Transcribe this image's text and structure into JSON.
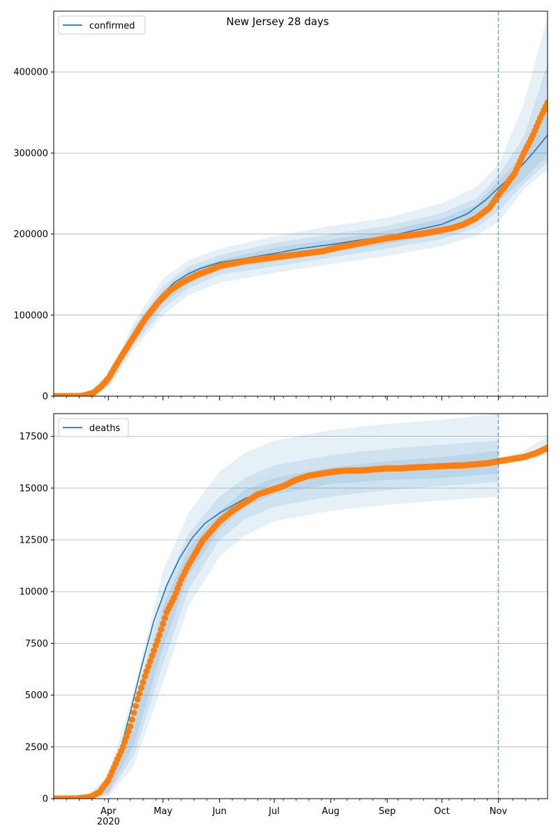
{
  "chart_data": [
    {
      "type": "line",
      "title": "New Jersey 28 days",
      "legend": {
        "label": "confirmed",
        "placement": "top-left"
      },
      "xlabel": "",
      "ylabel": "",
      "xlim": [
        "2020-03-02",
        "2020-11-28"
      ],
      "ylim": [
        0,
        475000
      ],
      "yticks": [
        0,
        100000,
        200000,
        300000,
        400000
      ],
      "ytick_labels": [
        "0",
        "100000",
        "200000",
        "300000",
        "400000"
      ],
      "grid": "horizontal",
      "forecast_start": "2020-11-01",
      "series": [
        {
          "name": "confirmed",
          "kind": "model",
          "x": [
            "2020-03-02",
            "2020-03-18",
            "2020-03-24",
            "2020-03-31",
            "2020-04-07",
            "2020-04-15",
            "2020-04-22",
            "2020-04-29",
            "2020-05-07",
            "2020-05-15",
            "2020-05-22",
            "2020-06-01",
            "2020-06-15",
            "2020-07-01",
            "2020-07-15",
            "2020-08-01",
            "2020-08-15",
            "2020-09-01",
            "2020-09-15",
            "2020-10-01",
            "2020-10-15",
            "2020-10-25",
            "2020-11-01",
            "2020-11-10",
            "2020-11-20",
            "2020-11-28"
          ],
          "y": [
            0,
            0,
            2000,
            15000,
            45000,
            72000,
            100000,
            122000,
            140000,
            151000,
            158000,
            165000,
            170000,
            176000,
            182000,
            187000,
            192000,
            197000,
            204000,
            212000,
            225000,
            242000,
            257000,
            275000,
            300000,
            322000
          ]
        },
        {
          "name": "confirmed",
          "kind": "observed",
          "x": [
            "2020-03-02",
            "2020-03-10",
            "2020-03-17",
            "2020-03-20",
            "2020-03-24",
            "2020-03-28",
            "2020-04-01",
            "2020-04-07",
            "2020-04-14",
            "2020-04-21",
            "2020-04-28",
            "2020-05-05",
            "2020-05-12",
            "2020-05-19",
            "2020-05-26",
            "2020-06-02",
            "2020-06-09",
            "2020-06-16",
            "2020-06-23",
            "2020-06-30",
            "2020-07-07",
            "2020-07-14",
            "2020-07-21",
            "2020-07-28",
            "2020-08-04",
            "2020-08-11",
            "2020-08-18",
            "2020-08-25",
            "2020-09-01",
            "2020-09-08",
            "2020-09-15",
            "2020-09-22",
            "2020-09-29",
            "2020-10-06",
            "2020-10-13",
            "2020-10-20",
            "2020-10-27",
            "2020-11-01",
            "2020-11-05",
            "2020-11-10",
            "2020-11-15",
            "2020-11-20",
            "2020-11-24",
            "2020-11-28"
          ],
          "y": [
            0,
            0,
            300,
            1500,
            4500,
            12000,
            22000,
            45000,
            70000,
            95000,
            115000,
            131000,
            141000,
            149000,
            155000,
            161000,
            164000,
            167000,
            169000,
            171000,
            173000,
            175000,
            177000,
            179000,
            183000,
            186000,
            189000,
            192000,
            195000,
            197000,
            199000,
            201000,
            204000,
            207000,
            212000,
            220000,
            232000,
            248000,
            260000,
            275000,
            300000,
            322000,
            343000,
            362000
          ]
        }
      ],
      "bands": [
        {
          "x": [
            "2020-03-02",
            "2020-03-20",
            "2020-04-01",
            "2020-04-15",
            "2020-05-01",
            "2020-05-15",
            "2020-06-01",
            "2020-07-01",
            "2020-08-01",
            "2020-09-01",
            "2020-10-01",
            "2020-10-20",
            "2020-11-01",
            "2020-11-15",
            "2020-11-28"
          ],
          "lower": [
            0,
            300,
            10000,
            58000,
            100000,
            125000,
            140000,
            152000,
            163000,
            173000,
            185000,
            198000,
            215000,
            255000,
            280000
          ],
          "upper": [
            0,
            1500,
            24000,
            92000,
            145000,
            168000,
            182000,
            197000,
            210000,
            220000,
            238000,
            258000,
            285000,
            360000,
            470000
          ]
        },
        {
          "x": [
            "2020-03-02",
            "2020-03-20",
            "2020-04-01",
            "2020-04-15",
            "2020-05-01",
            "2020-05-15",
            "2020-06-01",
            "2020-07-01",
            "2020-08-01",
            "2020-09-01",
            "2020-10-01",
            "2020-10-20",
            "2020-11-01",
            "2020-11-15",
            "2020-11-28"
          ],
          "lower": [
            0,
            500,
            13000,
            63000,
            108000,
            133000,
            150000,
            160000,
            171000,
            182000,
            194000,
            208000,
            228000,
            262000,
            288000
          ],
          "upper": [
            0,
            1200,
            21000,
            85000,
            136000,
            160000,
            174000,
            189000,
            200000,
            210000,
            226000,
            244000,
            272000,
            320000,
            410000
          ]
        },
        {
          "x": [
            "2020-03-02",
            "2020-03-20",
            "2020-04-01",
            "2020-04-15",
            "2020-05-01",
            "2020-05-15",
            "2020-06-01",
            "2020-07-01",
            "2020-08-01",
            "2020-09-01",
            "2020-10-01",
            "2020-10-20",
            "2020-11-01",
            "2020-11-15",
            "2020-11-28"
          ],
          "lower": [
            0,
            700,
            14500,
            67000,
            115000,
            139000,
            156000,
            166000,
            177000,
            188000,
            200000,
            215000,
            240000,
            268000,
            298000
          ],
          "upper": [
            0,
            1000,
            19000,
            80000,
            130000,
            154000,
            168000,
            183000,
            193000,
            204000,
            219000,
            236000,
            265000,
            298000,
            370000
          ]
        }
      ]
    },
    {
      "type": "line",
      "title": "",
      "legend": {
        "label": "deaths",
        "placement": "top-left"
      },
      "xlabel": "",
      "ylabel": "",
      "xlim": [
        "2020-03-02",
        "2020-11-28"
      ],
      "ylim": [
        0,
        18600
      ],
      "yticks": [
        0,
        2500,
        5000,
        7500,
        10000,
        12500,
        15000,
        17500
      ],
      "ytick_labels": [
        "0",
        "2500",
        "5000",
        "7500",
        "10000",
        "12500",
        "15000",
        "17500"
      ],
      "grid": "horizontal",
      "forecast_start": "2020-11-01",
      "xtick_labels": [
        "Apr\n2020",
        "May",
        "Jun",
        "Jul",
        "Aug",
        "Sep",
        "Oct",
        "Nov"
      ],
      "xticks": [
        "2020-04-01",
        "2020-05-01",
        "2020-06-01",
        "2020-07-01",
        "2020-08-01",
        "2020-09-01",
        "2020-10-01",
        "2020-11-01"
      ],
      "series": [
        {
          "name": "deaths",
          "kind": "model",
          "x": [
            "2020-03-02",
            "2020-03-20",
            "2020-03-28",
            "2020-04-05",
            "2020-04-12",
            "2020-04-19",
            "2020-04-26",
            "2020-05-03",
            "2020-05-10",
            "2020-05-17",
            "2020-05-24",
            "2020-06-01",
            "2020-06-15",
            "2020-07-01",
            "2020-07-15",
            "2020-08-01",
            "2020-09-01",
            "2020-10-01",
            "2020-11-01",
            "2020-11-15",
            "2020-11-28"
          ],
          "y": [
            0,
            50,
            300,
            1500,
            3800,
            6300,
            8600,
            10300,
            11600,
            12600,
            13300,
            13800,
            14500,
            15000,
            15400,
            15700,
            15850,
            16000,
            16300,
            16500,
            16800
          ]
        },
        {
          "name": "deaths",
          "kind": "observed",
          "x": [
            "2020-03-02",
            "2020-03-15",
            "2020-03-22",
            "2020-03-27",
            "2020-04-01",
            "2020-04-05",
            "2020-04-09",
            "2020-04-13",
            "2020-04-17",
            "2020-04-21",
            "2020-04-25",
            "2020-04-29",
            "2020-05-03",
            "2020-05-07",
            "2020-05-11",
            "2020-05-15",
            "2020-05-19",
            "2020-05-23",
            "2020-05-27",
            "2020-06-01",
            "2020-06-08",
            "2020-06-15",
            "2020-06-22",
            "2020-06-29",
            "2020-07-06",
            "2020-07-13",
            "2020-07-20",
            "2020-07-27",
            "2020-08-03",
            "2020-08-10",
            "2020-08-17",
            "2020-08-24",
            "2020-08-31",
            "2020-09-07",
            "2020-09-14",
            "2020-09-21",
            "2020-09-28",
            "2020-10-05",
            "2020-10-12",
            "2020-10-19",
            "2020-10-26",
            "2020-11-01",
            "2020-11-08",
            "2020-11-15",
            "2020-11-22",
            "2020-11-28"
          ],
          "y": [
            0,
            10,
            80,
            300,
            900,
            1700,
            2500,
            3500,
            4800,
            5900,
            6900,
            7900,
            9000,
            9700,
            10600,
            11300,
            11900,
            12500,
            12900,
            13400,
            13900,
            14300,
            14700,
            14900,
            15100,
            15400,
            15600,
            15700,
            15800,
            15850,
            15850,
            15900,
            15950,
            15950,
            15990,
            16020,
            16050,
            16080,
            16100,
            16150,
            16200,
            16300,
            16400,
            16500,
            16700,
            16950
          ]
        }
      ],
      "bands": [
        {
          "x": [
            "2020-03-02",
            "2020-03-20",
            "2020-04-01",
            "2020-04-15",
            "2020-05-01",
            "2020-05-15",
            "2020-06-01",
            "2020-06-15",
            "2020-07-01",
            "2020-08-01",
            "2020-09-01",
            "2020-10-01",
            "2020-11-01"
          ],
          "lower": [
            0,
            20,
            100,
            1600,
            5600,
            9300,
            11700,
            12700,
            13400,
            13900,
            14200,
            14400,
            14600
          ],
          "upper": [
            0,
            150,
            1100,
            5200,
            11000,
            13800,
            15800,
            16700,
            17300,
            17800,
            18100,
            18300,
            18600
          ]
        },
        {
          "x": [
            "2020-03-02",
            "2020-03-20",
            "2020-04-01",
            "2020-04-15",
            "2020-05-01",
            "2020-05-15",
            "2020-06-01",
            "2020-06-15",
            "2020-07-01",
            "2020-08-01",
            "2020-09-01",
            "2020-10-01",
            "2020-11-01"
          ],
          "lower": [
            0,
            30,
            200,
            2100,
            6500,
            10100,
            12500,
            13500,
            14100,
            14600,
            14900,
            15100,
            15300
          ],
          "upper": [
            0,
            110,
            800,
            4300,
            10000,
            12800,
            14600,
            15500,
            16100,
            16600,
            16900,
            17100,
            17300
          ]
        },
        {
          "x": [
            "2020-03-02",
            "2020-03-20",
            "2020-04-01",
            "2020-04-15",
            "2020-05-01",
            "2020-05-15",
            "2020-06-01",
            "2020-06-15",
            "2020-07-01",
            "2020-08-01",
            "2020-09-01",
            "2020-10-01",
            "2020-11-01"
          ],
          "lower": [
            0,
            40,
            300,
            2600,
            7300,
            10800,
            13000,
            14100,
            14700,
            15200,
            15400,
            15500,
            15700
          ],
          "upper": [
            0,
            80,
            600,
            3600,
            9300,
            12100,
            13900,
            14900,
            15500,
            16000,
            16300,
            16500,
            16800
          ]
        },
        {
          "x": [
            "2020-11-01",
            "2020-11-15",
            "2020-11-28"
          ],
          "lower": [
            16300,
            16400,
            16600
          ],
          "upper": [
            16300,
            16800,
            17500
          ]
        }
      ]
    }
  ]
}
